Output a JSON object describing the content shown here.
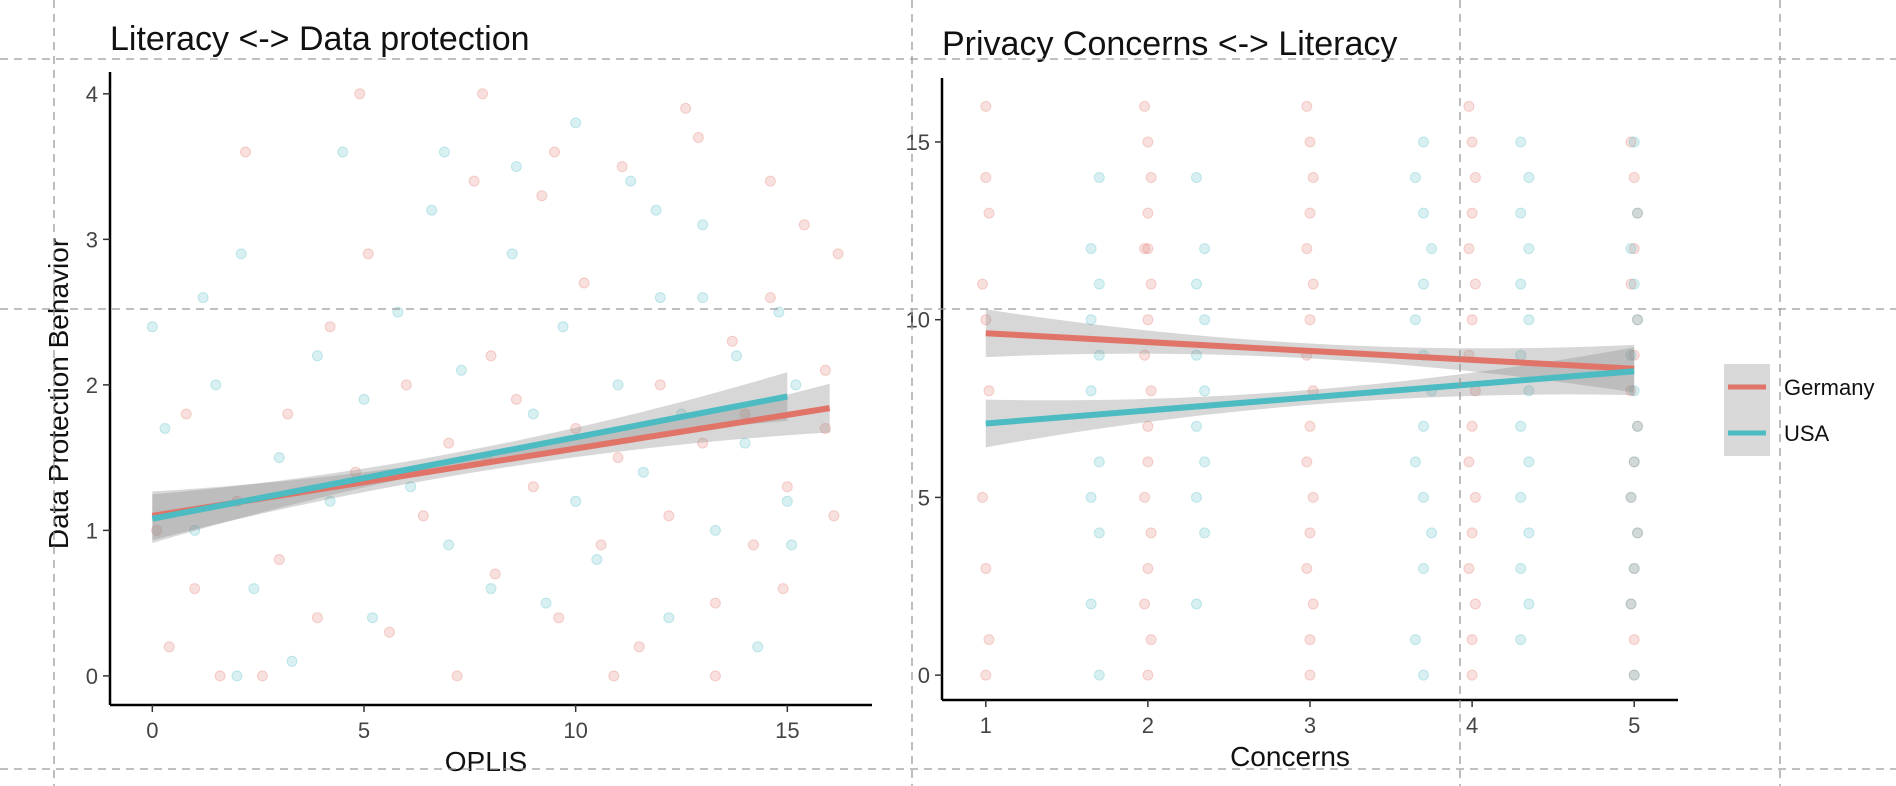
{
  "chart_data": [
    {
      "type": "scatter",
      "title": "Literacy <-> Data protection",
      "xlabel": "OPLIS",
      "ylabel": "Data Protection Behavior",
      "xlim": [
        -1,
        17
      ],
      "ylim": [
        -0.2,
        4.15
      ],
      "xticks": [
        0,
        5,
        10,
        15
      ],
      "yticks": [
        0,
        1,
        2,
        3,
        4
      ],
      "point_style": "semi-transparent jittered points",
      "fit": "linear regression with confidence band",
      "series": [
        {
          "name": "Germany",
          "color": "#E07468",
          "points": [
            [
              0.1,
              1.0
            ],
            [
              0.4,
              0.2
            ],
            [
              1.0,
              0.6
            ],
            [
              2.0,
              1.2
            ],
            [
              2.6,
              0.0
            ],
            [
              3.0,
              0.8
            ],
            [
              3.2,
              1.8
            ],
            [
              3.9,
              0.4
            ],
            [
              4.2,
              2.4
            ],
            [
              4.8,
              1.4
            ],
            [
              5.1,
              2.9
            ],
            [
              5.6,
              0.3
            ],
            [
              6.0,
              2.0
            ],
            [
              6.4,
              1.1
            ],
            [
              7.0,
              1.6
            ],
            [
              7.2,
              0.0
            ],
            [
              7.6,
              3.4
            ],
            [
              8.0,
              2.2
            ],
            [
              8.1,
              0.7
            ],
            [
              8.6,
              1.9
            ],
            [
              9.0,
              1.3
            ],
            [
              9.2,
              3.3
            ],
            [
              9.6,
              0.4
            ],
            [
              10.0,
              1.7
            ],
            [
              10.2,
              2.7
            ],
            [
              10.6,
              0.9
            ],
            [
              11.0,
              1.5
            ],
            [
              11.1,
              3.5
            ],
            [
              11.5,
              0.2
            ],
            [
              12.0,
              2.0
            ],
            [
              12.2,
              1.1
            ],
            [
              12.6,
              3.9
            ],
            [
              13.0,
              1.6
            ],
            [
              13.3,
              0.5
            ],
            [
              13.7,
              2.3
            ],
            [
              14.0,
              1.8
            ],
            [
              14.2,
              0.9
            ],
            [
              14.6,
              2.6
            ],
            [
              15.0,
              1.3
            ],
            [
              15.4,
              3.1
            ],
            [
              15.9,
              1.7
            ],
            [
              16.2,
              2.9
            ],
            [
              4.9,
              4.0
            ],
            [
              7.8,
              4.0
            ],
            [
              2.2,
              3.6
            ],
            [
              9.5,
              3.6
            ],
            [
              12.9,
              3.7
            ],
            [
              14.6,
              3.4
            ],
            [
              0.8,
              1.8
            ],
            [
              1.6,
              0.0
            ],
            [
              10.9,
              0.0
            ],
            [
              13.3,
              0.0
            ],
            [
              14.9,
              0.6
            ],
            [
              15.9,
              2.1
            ],
            [
              16.1,
              1.1
            ]
          ],
          "fit_line": [
            [
              0,
              1.1
            ],
            [
              16,
              1.84
            ]
          ]
        },
        {
          "name": "USA",
          "color": "#4DBBC2",
          "points": [
            [
              0.0,
              2.4
            ],
            [
              0.3,
              1.7
            ],
            [
              1.0,
              1.0
            ],
            [
              1.2,
              2.6
            ],
            [
              2.1,
              2.9
            ],
            [
              2.4,
              0.6
            ],
            [
              3.0,
              1.5
            ],
            [
              3.3,
              0.1
            ],
            [
              3.9,
              2.2
            ],
            [
              4.2,
              1.2
            ],
            [
              5.0,
              1.9
            ],
            [
              5.2,
              0.4
            ],
            [
              5.8,
              2.5
            ],
            [
              6.1,
              1.3
            ],
            [
              6.6,
              3.2
            ],
            [
              7.0,
              0.9
            ],
            [
              7.3,
              2.1
            ],
            [
              7.9,
              1.5
            ],
            [
              8.0,
              0.6
            ],
            [
              8.5,
              2.9
            ],
            [
              9.0,
              1.8
            ],
            [
              9.3,
              0.5
            ],
            [
              9.7,
              2.4
            ],
            [
              10.0,
              1.2
            ],
            [
              10.0,
              3.8
            ],
            [
              10.5,
              0.8
            ],
            [
              11.0,
              2.0
            ],
            [
              11.3,
              3.4
            ],
            [
              11.6,
              1.4
            ],
            [
              12.0,
              2.6
            ],
            [
              12.2,
              0.4
            ],
            [
              12.5,
              1.8
            ],
            [
              13.0,
              3.1
            ],
            [
              13.3,
              1.0
            ],
            [
              13.8,
              2.2
            ],
            [
              14.0,
              1.6
            ],
            [
              14.3,
              0.2
            ],
            [
              14.8,
              2.5
            ],
            [
              15.0,
              1.2
            ],
            [
              15.2,
              2.0
            ],
            [
              2.0,
              0.0
            ],
            [
              4.5,
              3.6
            ],
            [
              6.9,
              3.6
            ],
            [
              8.6,
              3.5
            ],
            [
              11.9,
              3.2
            ],
            [
              13.0,
              2.6
            ],
            [
              15.1,
              0.9
            ],
            [
              1.5,
              2.0
            ]
          ],
          "fit_line": [
            [
              0,
              1.08
            ],
            [
              15,
              1.92
            ]
          ]
        }
      ]
    },
    {
      "type": "scatter",
      "title": "Privacy Concerns <-> Literacy",
      "xlabel": "Concerns",
      "ylabel": "",
      "xlim": [
        0.73,
        5.27
      ],
      "ylim": [
        -0.7,
        16.8
      ],
      "xticks": [
        1,
        2,
        3,
        4,
        5
      ],
      "yticks": [
        0,
        5,
        10,
        15
      ],
      "point_style": "semi-transparent jittered points",
      "fit": "linear regression with confidence band",
      "series": [
        {
          "name": "Germany",
          "color": "#E07468",
          "points": [
            [
              1.0,
              16
            ],
            [
              1.0,
              14
            ],
            [
              1.02,
              13
            ],
            [
              0.98,
              11
            ],
            [
              1.0,
              10
            ],
            [
              1.02,
              8
            ],
            [
              0.98,
              5
            ],
            [
              1.0,
              3
            ],
            [
              1.02,
              1
            ],
            [
              1.0,
              0
            ],
            [
              1.98,
              16
            ],
            [
              2.0,
              15
            ],
            [
              2.02,
              14
            ],
            [
              2.0,
              13
            ],
            [
              1.98,
              12
            ],
            [
              2.0,
              12
            ],
            [
              2.02,
              11
            ],
            [
              2.0,
              10
            ],
            [
              1.98,
              9
            ],
            [
              2.02,
              8
            ],
            [
              2.0,
              7
            ],
            [
              2.0,
              6
            ],
            [
              1.98,
              5
            ],
            [
              2.02,
              4
            ],
            [
              2.0,
              3
            ],
            [
              1.98,
              2
            ],
            [
              2.02,
              1
            ],
            [
              2.0,
              0
            ],
            [
              2.98,
              16
            ],
            [
              3.0,
              15
            ],
            [
              3.02,
              14
            ],
            [
              3.0,
              13
            ],
            [
              2.98,
              12
            ],
            [
              3.02,
              11
            ],
            [
              3.0,
              10
            ],
            [
              2.98,
              9
            ],
            [
              3.02,
              8
            ],
            [
              3.0,
              7
            ],
            [
              2.98,
              6
            ],
            [
              3.02,
              5
            ],
            [
              3.0,
              4
            ],
            [
              2.98,
              3
            ],
            [
              3.02,
              2
            ],
            [
              3.0,
              1
            ],
            [
              3.0,
              0
            ],
            [
              3.98,
              16
            ],
            [
              4.0,
              15
            ],
            [
              4.02,
              14
            ],
            [
              4.0,
              13
            ],
            [
              3.98,
              12
            ],
            [
              4.02,
              11
            ],
            [
              4.0,
              10
            ],
            [
              3.98,
              9
            ],
            [
              4.02,
              8
            ],
            [
              4.0,
              7
            ],
            [
              3.98,
              6
            ],
            [
              4.02,
              5
            ],
            [
              4.0,
              4
            ],
            [
              3.98,
              3
            ],
            [
              4.02,
              2
            ],
            [
              4.0,
              1
            ],
            [
              4.0,
              0
            ],
            [
              4.98,
              15
            ],
            [
              5.0,
              14
            ],
            [
              5.02,
              13
            ],
            [
              5.0,
              12
            ],
            [
              4.98,
              11
            ],
            [
              5.02,
              10
            ],
            [
              5.0,
              9
            ],
            [
              4.98,
              8
            ],
            [
              5.02,
              7
            ],
            [
              5.0,
              6
            ],
            [
              4.98,
              5
            ],
            [
              5.02,
              4
            ],
            [
              5.0,
              3
            ],
            [
              4.98,
              2
            ],
            [
              5.0,
              1
            ],
            [
              5.0,
              0
            ]
          ],
          "fit_line": [
            [
              1,
              9.62
            ],
            [
              5,
              8.62
            ]
          ]
        },
        {
          "name": "USA",
          "color": "#4DBBC2",
          "points": [
            [
              1.7,
              14
            ],
            [
              1.65,
              12
            ],
            [
              1.7,
              11
            ],
            [
              1.65,
              10
            ],
            [
              1.7,
              9
            ],
            [
              1.65,
              8
            ],
            [
              1.7,
              6
            ],
            [
              1.65,
              5
            ],
            [
              1.7,
              4
            ],
            [
              1.65,
              2
            ],
            [
              1.7,
              0
            ],
            [
              2.3,
              14
            ],
            [
              2.35,
              12
            ],
            [
              2.3,
              11
            ],
            [
              2.35,
              10
            ],
            [
              2.3,
              9
            ],
            [
              2.35,
              8
            ],
            [
              2.3,
              7
            ],
            [
              2.35,
              6
            ],
            [
              2.3,
              5
            ],
            [
              2.35,
              4
            ],
            [
              2.3,
              2
            ],
            [
              3.7,
              15
            ],
            [
              3.65,
              14
            ],
            [
              3.7,
              13
            ],
            [
              3.75,
              12
            ],
            [
              3.7,
              11
            ],
            [
              3.65,
              10
            ],
            [
              3.7,
              9
            ],
            [
              3.75,
              8
            ],
            [
              3.7,
              7
            ],
            [
              3.65,
              6
            ],
            [
              3.7,
              5
            ],
            [
              3.75,
              4
            ],
            [
              3.7,
              3
            ],
            [
              3.65,
              1
            ],
            [
              3.7,
              0
            ],
            [
              4.3,
              15
            ],
            [
              4.35,
              14
            ],
            [
              4.3,
              13
            ],
            [
              4.35,
              12
            ],
            [
              4.3,
              11
            ],
            [
              4.35,
              10
            ],
            [
              4.3,
              9
            ],
            [
              4.35,
              8
            ],
            [
              4.3,
              7
            ],
            [
              4.35,
              6
            ],
            [
              4.3,
              5
            ],
            [
              4.35,
              4
            ],
            [
              4.3,
              3
            ],
            [
              4.35,
              2
            ],
            [
              4.3,
              1
            ],
            [
              5.0,
              15
            ],
            [
              5.02,
              13
            ],
            [
              4.98,
              12
            ],
            [
              5.0,
              11
            ],
            [
              5.02,
              10
            ],
            [
              4.98,
              9
            ],
            [
              5.0,
              8
            ],
            [
              5.02,
              7
            ],
            [
              5.0,
              6
            ],
            [
              4.98,
              5
            ],
            [
              5.02,
              4
            ],
            [
              5.0,
              3
            ],
            [
              4.98,
              2
            ],
            [
              5.0,
              0
            ]
          ],
          "fit_line": [
            [
              1,
              7.08
            ],
            [
              5,
              8.55
            ]
          ]
        }
      ]
    }
  ],
  "legend": {
    "placement": "right",
    "items": [
      {
        "label": "Germany",
        "color": "#E07468"
      },
      {
        "label": "USA",
        "color": "#4DBBC2"
      }
    ]
  },
  "theme": {
    "band_color": "#8c8c8c",
    "axis_color": "#000000",
    "guide_color": "#9a9a9a"
  }
}
